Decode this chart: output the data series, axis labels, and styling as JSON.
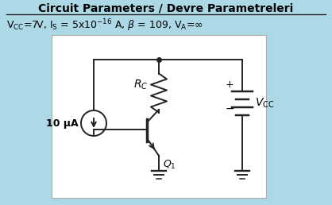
{
  "title": "Circuit Parameters / Devre Parametreleri",
  "bg_color": "#add8e6",
  "box_facecolor": "#ffffff",
  "box_edgecolor": "#aaaaaa",
  "line_color": "#222222",
  "text_color": "#000000",
  "title_fontsize": 10,
  "subtitle_fontsize": 9,
  "circuit_fontsize": 9
}
